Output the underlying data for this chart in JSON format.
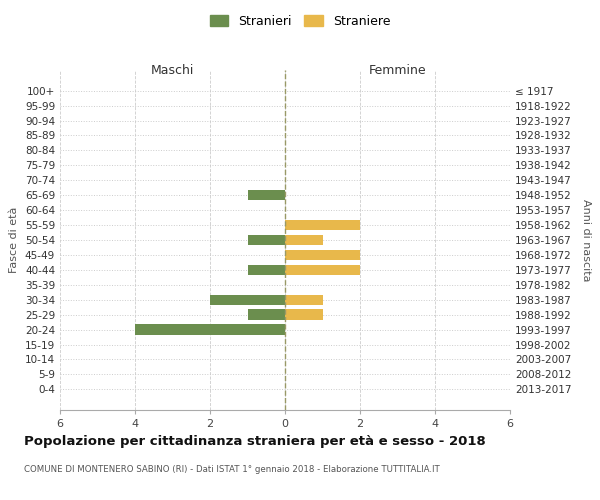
{
  "age_groups": [
    "100+",
    "95-99",
    "90-94",
    "85-89",
    "80-84",
    "75-79",
    "70-74",
    "65-69",
    "60-64",
    "55-59",
    "50-54",
    "45-49",
    "40-44",
    "35-39",
    "30-34",
    "25-29",
    "20-24",
    "15-19",
    "10-14",
    "5-9",
    "0-4"
  ],
  "birth_years": [
    "≤ 1917",
    "1918-1922",
    "1923-1927",
    "1928-1932",
    "1933-1937",
    "1938-1942",
    "1943-1947",
    "1948-1952",
    "1953-1957",
    "1958-1962",
    "1963-1967",
    "1968-1972",
    "1973-1977",
    "1978-1982",
    "1983-1987",
    "1988-1992",
    "1993-1997",
    "1998-2002",
    "2003-2007",
    "2008-2012",
    "2013-2017"
  ],
  "maschi": [
    0,
    0,
    0,
    0,
    0,
    0,
    0,
    1,
    0,
    0,
    1,
    0,
    1,
    0,
    2,
    1,
    4,
    0,
    0,
    0,
    0
  ],
  "femmine": [
    0,
    0,
    0,
    0,
    0,
    0,
    0,
    0,
    0,
    2,
    1,
    2,
    2,
    0,
    1,
    1,
    0,
    0,
    0,
    0,
    0
  ],
  "maschi_color": "#6b8e4e",
  "femmine_color": "#e8b84b",
  "title": "Popolazione per cittadinanza straniera per età e sesso - 2018",
  "subtitle": "COMUNE DI MONTENERO SABINO (RI) - Dati ISTAT 1° gennaio 2018 - Elaborazione TUTTITALIA.IT",
  "label_maschi": "Maschi",
  "label_femmine": "Femmine",
  "ylabel_left": "Fasce di età",
  "ylabel_right": "Anni di nascita",
  "legend_maschi": "Stranieri",
  "legend_femmine": "Straniere",
  "xlim": 6,
  "background_color": "#ffffff",
  "grid_color": "#cccccc",
  "bar_height": 0.7
}
